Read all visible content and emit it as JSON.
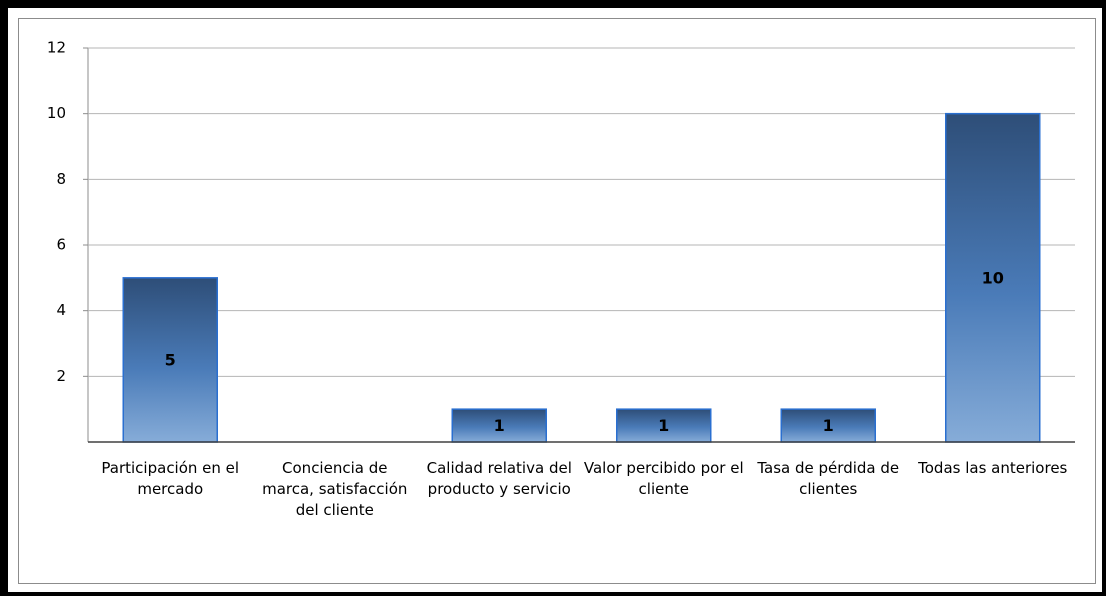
{
  "chart_data": {
    "type": "bar",
    "categories": [
      "Participación en el mercado",
      "Conciencia de marca, satisfacción del cliente",
      "Calidad relativa del producto y servicio",
      "Valor percibido por el cliente",
      "Tasa de pérdida de clientes",
      "Todas las anteriores"
    ],
    "values": [
      5,
      0,
      1,
      1,
      1,
      10
    ],
    "color": "#3f6ea8",
    "ylim": [
      0,
      12
    ],
    "yticks": [
      2,
      4,
      6,
      8,
      10,
      12
    ],
    "grid": true
  }
}
